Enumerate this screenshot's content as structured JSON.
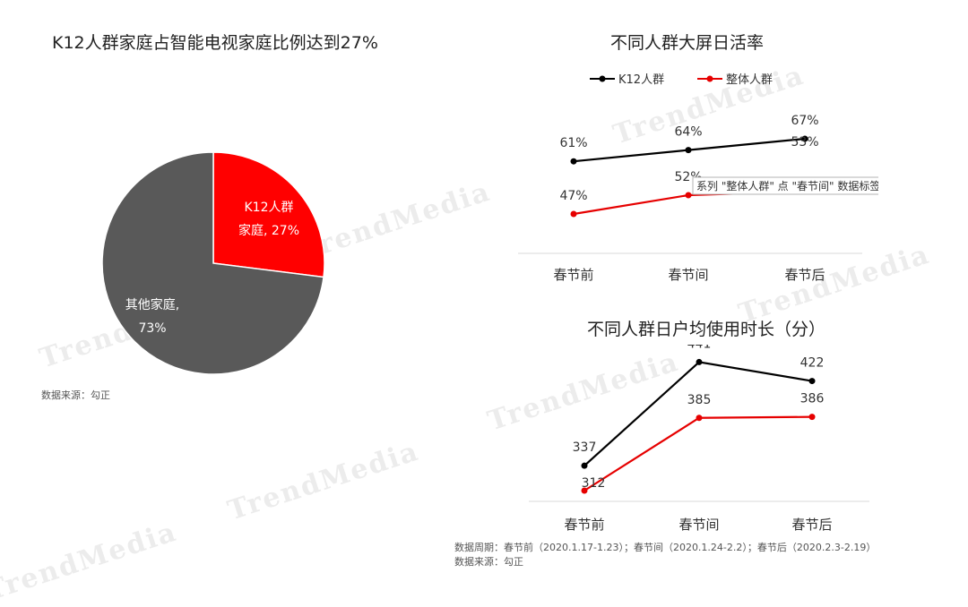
{
  "watermark": "TrendMedia",
  "colors": {
    "k12": "#000000",
    "overall": "#e60000",
    "pie_k12": "#ff0000",
    "pie_other": "#595959"
  },
  "pie_chart": {
    "title": "K12人群家庭占智能电视家庭比例达到27%",
    "source": "数据来源：勾正",
    "chart_data": {
      "type": "pie",
      "slices": [
        {
          "label_line1": "K12人群",
          "label_line2": "家庭, 27%",
          "value": 27
        },
        {
          "label_line1": "其他家庭,",
          "label_line2": "73%",
          "value": 73
        }
      ]
    }
  },
  "dau_chart": {
    "title": "不同人群大屏日活率",
    "tooltip": "系列 \"整体人群\" 点 \"春节间\" 数据标签",
    "chart_data": {
      "type": "line",
      "categories": [
        "春节前",
        "春节间",
        "春节后"
      ],
      "series": [
        {
          "name": "K12人群",
          "values": [
            61,
            64,
            67
          ],
          "labels": [
            "61%",
            "64%",
            "67%"
          ]
        },
        {
          "name": "整体人群",
          "values": [
            47,
            52,
            53
          ],
          "labels": [
            "47%",
            "52%",
            "53%"
          ]
        }
      ],
      "y_unit": "%"
    }
  },
  "duration_chart": {
    "title": "不同人群日户均使用时长（分）",
    "footnote_period": "数据周期：春节前（2020.1.17-1.23）；春节间（2020.1.24-2.2）；春节后（2020.2.3-2.19）",
    "footnote_source": "数据来源：勾正",
    "chart_data": {
      "type": "line",
      "categories": [
        "春节前",
        "春节间",
        "春节后"
      ],
      "series": [
        {
          "name": "K12人群",
          "values": [
            337,
            441,
            422
          ],
          "labels": [
            "337",
            "441",
            "422"
          ]
        },
        {
          "name": "整体人群",
          "values": [
            312,
            385,
            386
          ],
          "labels": [
            "312",
            "385",
            "386"
          ]
        }
      ]
    }
  }
}
